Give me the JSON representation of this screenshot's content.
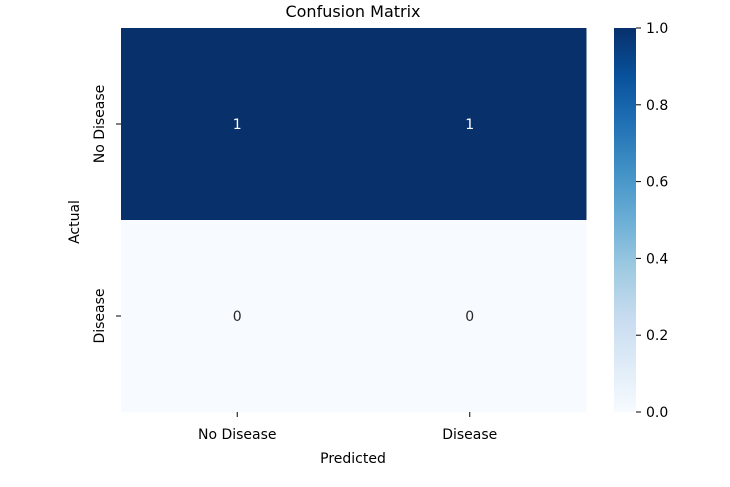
{
  "chart_data": {
    "type": "heatmap",
    "title": "Confusion Matrix",
    "xlabel": "Predicted",
    "ylabel": "Actual",
    "x_categories": [
      "No Disease",
      "Disease"
    ],
    "y_categories": [
      "No Disease",
      "Disease"
    ],
    "values": [
      [
        1,
        1
      ],
      [
        0,
        0
      ]
    ],
    "annotations": [
      [
        "1",
        "1"
      ],
      [
        "0",
        "0"
      ]
    ],
    "colormap": "Blues",
    "color_range": [
      0.0,
      1.0
    ],
    "low_color": "#f7fbff",
    "high_color": "#08306b",
    "colorbar_ticks": [
      "0.0",
      "0.2",
      "0.4",
      "0.6",
      "0.8",
      "1.0"
    ],
    "grid": false,
    "legend": "colorbar-right"
  }
}
